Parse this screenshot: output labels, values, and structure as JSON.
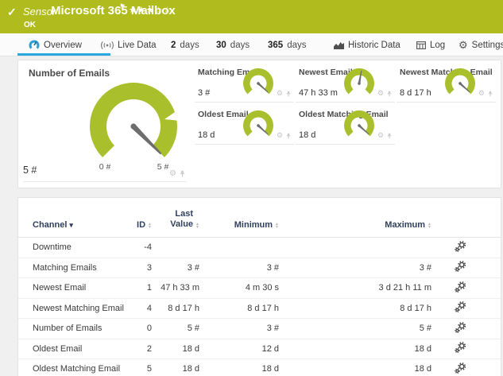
{
  "header": {
    "status_check": "✓",
    "type_label": "Sensor",
    "title": "Microsoft 365 Mailbox",
    "status_text": "OK",
    "flag_icon": "⚑",
    "priority_stars_filled": "★★★",
    "priority_stars_empty": "☆☆"
  },
  "tabs": {
    "overview": {
      "label": "Overview"
    },
    "live_data": {
      "label": "Live Data"
    },
    "days2": {
      "num": "2",
      "label": "days"
    },
    "days30": {
      "num": "30",
      "label": "days"
    },
    "days365": {
      "num": "365",
      "label": "days"
    },
    "historic": {
      "label": "Historic Data"
    },
    "log": {
      "label": "Log"
    },
    "settings": {
      "label": "Settings"
    }
  },
  "overview_panel": {
    "main_gauge": {
      "title": "Number of Emails",
      "value": "5 #",
      "scale_min": "0 #",
      "scale_max": "5 #",
      "needle_deg": 45
    },
    "small_gauges": [
      {
        "title": "Matching Emails",
        "value": "3 #",
        "needle_deg": 42
      },
      {
        "title": "Newest Email",
        "value": "47 h 33 m",
        "needle_deg": -80
      },
      {
        "title": "Newest Matching Email",
        "value": "8 d 17 h",
        "needle_deg": 42
      },
      {
        "title": "Oldest Email",
        "value": "18 d",
        "needle_deg": 42
      },
      {
        "title": "Oldest Matching Email",
        "value": "18 d",
        "needle_deg": 42
      }
    ]
  },
  "table": {
    "columns": [
      "Channel",
      "ID",
      "Last Value",
      "Minimum",
      "Maximum"
    ],
    "rows": [
      {
        "channel": "Downtime",
        "id": "-4",
        "last": "",
        "min": "",
        "max": ""
      },
      {
        "channel": "Matching Emails",
        "id": "3",
        "last": "3 #",
        "min": "3 #",
        "max": "3 #"
      },
      {
        "channel": "Newest Email",
        "id": "1",
        "last": "47 h 33 m",
        "min": "4 m 30 s",
        "max": "3 d 21 h 11 m"
      },
      {
        "channel": "Newest Matching Email",
        "id": "4",
        "last": "8 d 17 h",
        "min": "8 d 17 h",
        "max": "8 d 17 h"
      },
      {
        "channel": "Number of Emails",
        "id": "0",
        "last": "5 #",
        "min": "3 #",
        "max": "5 #"
      },
      {
        "channel": "Oldest Email",
        "id": "2",
        "last": "18 d",
        "min": "12 d",
        "max": "18 d"
      },
      {
        "channel": "Oldest Matching Email",
        "id": "5",
        "last": "18 d",
        "min": "18 d",
        "max": "18 d"
      }
    ]
  },
  "colors": {
    "status_green": "#b0bc1e",
    "gauge_green": "#a9bf2c",
    "accent_blue": "#2ba7df"
  }
}
